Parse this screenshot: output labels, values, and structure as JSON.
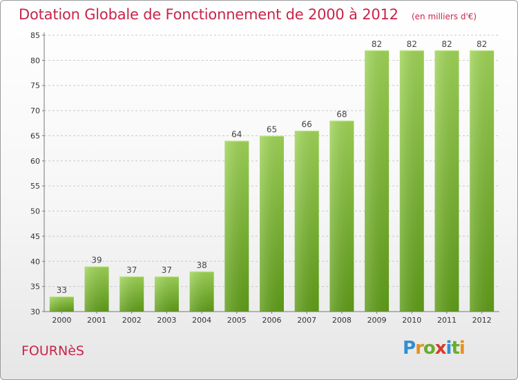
{
  "header": {
    "title": "Dotation Globale de Fonctionnement de 2000 à 2012",
    "unit": "(en milliers d'€)"
  },
  "footer": {
    "commune": "FOURNèS",
    "logo_text": "Proxiti"
  },
  "colors": {
    "title": "#c8244a",
    "bar_light": "#9fd457",
    "bar_dark": "#5f9d18",
    "grid": "#c8c8c8"
  },
  "chart_data": {
    "type": "bar",
    "title": "Dotation Globale de Fonctionnement de 2000 à 2012",
    "subtitle": "(en milliers d'€)",
    "xlabel": "",
    "ylabel": "",
    "categories": [
      "2000",
      "2001",
      "2002",
      "2003",
      "2004",
      "2005",
      "2006",
      "2007",
      "2008",
      "2009",
      "2010",
      "2011",
      "2012"
    ],
    "values": [
      33,
      39,
      37,
      37,
      38,
      64,
      65,
      66,
      68,
      82,
      82,
      82,
      82
    ],
    "ylim": [
      30,
      85
    ],
    "yticks": [
      30,
      35,
      40,
      45,
      50,
      55,
      60,
      65,
      70,
      75,
      80,
      85
    ],
    "grid": "horizontal dashed",
    "data_labels": true
  }
}
